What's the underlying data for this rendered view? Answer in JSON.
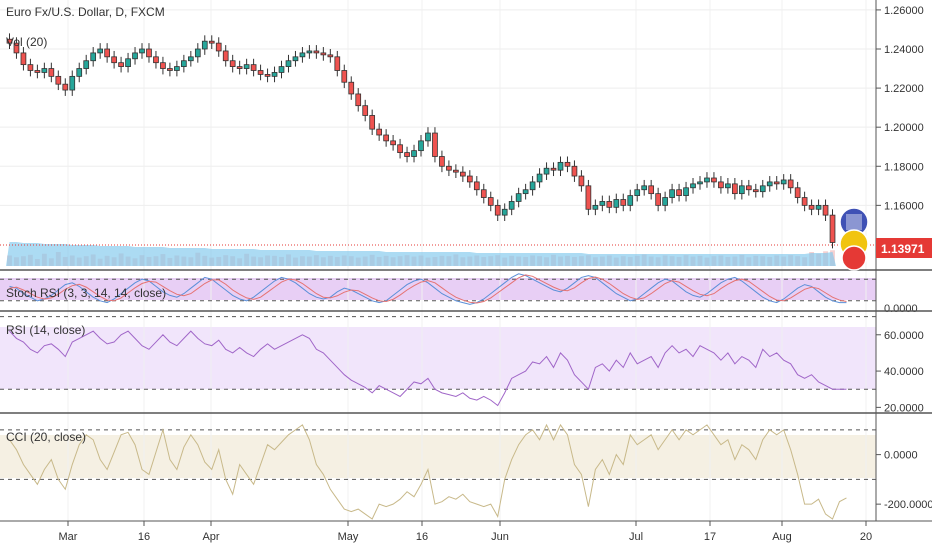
{
  "header": {
    "title": "Euro Fx/U.S. Dollar, D, FXCM",
    "volume_label": "Vol (20)"
  },
  "price_badge": {
    "value": "1.13971",
    "color": "#e53935"
  },
  "x_axis": {
    "ticks": [
      "Mar",
      "16",
      "Apr",
      "May",
      "16",
      "Jun",
      "Jul",
      "17",
      "Aug",
      "20"
    ]
  },
  "chart_data": [
    {
      "type": "line",
      "name": "price",
      "title": "Euro Fx/U.S. Dollar, D, FXCM",
      "ylim": [
        1.13,
        1.262
      ],
      "yticks": [
        1.26,
        1.24,
        1.22,
        1.2,
        1.18,
        1.16
      ],
      "ytick_labels": [
        "1.26000",
        "1.24000",
        "1.22000",
        "1.20000",
        "1.18000",
        "1.16000"
      ],
      "close_values": [
        1.243,
        1.238,
        1.232,
        1.229,
        1.228,
        1.23,
        1.226,
        1.222,
        1.219,
        1.226,
        1.23,
        1.234,
        1.238,
        1.24,
        1.236,
        1.233,
        1.231,
        1.235,
        1.238,
        1.24,
        1.236,
        1.233,
        1.23,
        1.229,
        1.231,
        1.234,
        1.236,
        1.24,
        1.244,
        1.243,
        1.239,
        1.234,
        1.231,
        1.23,
        1.232,
        1.229,
        1.227,
        1.226,
        1.228,
        1.231,
        1.234,
        1.236,
        1.238,
        1.239,
        1.238,
        1.237,
        1.236,
        1.229,
        1.223,
        1.217,
        1.211,
        1.206,
        1.199,
        1.196,
        1.193,
        1.191,
        1.187,
        1.185,
        1.188,
        1.193,
        1.197,
        1.185,
        1.18,
        1.178,
        1.177,
        1.175,
        1.172,
        1.168,
        1.164,
        1.16,
        1.155,
        1.158,
        1.162,
        1.166,
        1.168,
        1.172,
        1.176,
        1.179,
        1.178,
        1.182,
        1.18,
        1.175,
        1.17,
        1.158,
        1.16,
        1.162,
        1.159,
        1.163,
        1.16,
        1.165,
        1.168,
        1.17,
        1.166,
        1.16,
        1.164,
        1.168,
        1.165,
        1.169,
        1.171,
        1.172,
        1.174,
        1.172,
        1.169,
        1.171,
        1.166,
        1.17,
        1.168,
        1.167,
        1.17,
        1.172,
        1.171,
        1.173,
        1.169,
        1.164,
        1.16,
        1.158,
        1.16,
        1.155,
        1.141
      ],
      "last_value": 1.13971
    },
    {
      "type": "bar",
      "name": "volume",
      "title": "Vol (20)",
      "values": [
        30,
        25,
        28,
        32,
        20,
        35,
        22,
        40,
        26,
        30,
        24,
        28,
        33,
        21,
        29,
        25,
        36,
        27,
        22,
        31,
        26,
        28,
        34,
        23,
        30,
        27,
        25,
        38,
        29,
        24,
        26,
        31,
        28,
        22,
        35,
        27,
        25,
        30,
        29,
        26,
        33,
        24,
        28,
        27,
        31,
        25,
        29,
        26,
        30,
        28,
        24,
        27,
        32,
        26,
        29,
        25,
        28,
        31,
        27,
        30,
        24,
        26,
        29,
        28,
        33,
        25,
        27,
        30,
        26,
        28,
        31,
        24,
        29,
        27,
        26,
        30,
        28,
        25,
        32,
        27,
        29,
        26,
        28,
        31,
        25,
        27,
        30,
        24,
        28,
        26,
        29,
        33,
        27,
        25,
        30,
        28,
        26,
        31,
        27,
        29,
        24,
        28,
        30,
        26,
        27,
        32,
        25,
        29,
        28,
        26,
        30,
        27,
        31,
        28,
        25,
        40,
        35,
        42,
        45
      ],
      "ma_values": [
        24,
        24,
        23,
        23,
        23,
        22,
        22,
        22,
        22,
        21,
        21,
        21,
        21,
        20,
        20,
        20,
        20,
        20,
        19,
        19,
        19,
        19,
        19,
        18,
        18,
        18,
        18,
        18,
        18,
        17,
        17,
        17,
        17,
        17,
        17,
        17,
        16,
        16,
        16,
        16,
        16,
        16,
        16,
        16,
        15,
        15,
        15,
        15,
        15,
        15,
        15,
        15,
        15,
        15,
        14,
        14,
        14,
        14,
        14,
        14,
        14,
        14,
        14,
        14,
        14,
        14,
        14,
        13,
        13,
        13,
        13,
        13,
        13,
        13,
        13,
        13,
        13,
        13,
        13,
        13,
        13,
        13,
        13,
        12,
        12,
        12,
        12,
        12,
        12,
        12,
        12,
        12,
        12,
        12,
        12,
        12,
        12,
        12,
        12,
        12,
        12,
        12,
        12,
        12,
        12,
        12,
        12,
        12,
        12,
        12,
        12,
        12,
        12,
        12,
        12,
        13,
        13,
        13,
        14
      ]
    },
    {
      "type": "line",
      "title": "Stoch RSI (3, 3, 14, 14, close)",
      "ylim": [
        0,
        100
      ],
      "yticks": [
        0
      ],
      "ytick_labels": [
        "0.0000"
      ],
      "bands": [
        80,
        20
      ],
      "series": [
        {
          "values": [
            60,
            55,
            40,
            30,
            20,
            25,
            35,
            50,
            65,
            70,
            60,
            45,
            30,
            20,
            15,
            25,
            40,
            55,
            70,
            80,
            75,
            60,
            45,
            35,
            30,
            40,
            55,
            70,
            85,
            80,
            65,
            50,
            35,
            25,
            20,
            30,
            45,
            60,
            75,
            85,
            80,
            70,
            55,
            40,
            30,
            25,
            30,
            45,
            55,
            50,
            40,
            30,
            20,
            15,
            20,
            35,
            50,
            65,
            75,
            80,
            70,
            55,
            40,
            30,
            20,
            15,
            10,
            15,
            25,
            40,
            55,
            70,
            85,
            95,
            90,
            80,
            70,
            60,
            50,
            45,
            55,
            70,
            85,
            90,
            85,
            70,
            55,
            40,
            30,
            20,
            25,
            40,
            55,
            70,
            80,
            75,
            60,
            45,
            35,
            30,
            40,
            55,
            70,
            80,
            85,
            75,
            60,
            45,
            30,
            20,
            15,
            25,
            40,
            55,
            65,
            60,
            45,
            30,
            20,
            15,
            15
          ]
        },
        {
          "values": [
            55,
            58,
            50,
            40,
            30,
            25,
            28,
            38,
            52,
            62,
            66,
            58,
            45,
            32,
            22,
            20,
            28,
            42,
            56,
            68,
            74,
            72,
            60,
            48,
            38,
            34,
            40,
            54,
            68,
            78,
            78,
            66,
            50,
            38,
            28,
            24,
            30,
            44,
            58,
            72,
            80,
            78,
            68,
            54,
            40,
            30,
            28,
            34,
            44,
            50,
            48,
            38,
            28,
            20,
            18,
            24,
            36,
            50,
            62,
            72,
            76,
            70,
            56,
            42,
            30,
            22,
            16,
            14,
            18,
            28,
            42,
            56,
            70,
            84,
            92,
            88,
            78,
            68,
            58,
            50,
            48,
            56,
            70,
            82,
            86,
            80,
            68,
            54,
            40,
            30,
            24,
            28,
            40,
            54,
            68,
            76,
            72,
            60,
            48,
            38,
            34,
            40,
            54,
            66,
            76,
            80,
            74,
            60,
            46,
            32,
            22,
            20,
            28,
            40,
            52,
            58,
            54,
            42,
            30,
            22,
            18
          ]
        }
      ]
    },
    {
      "type": "line",
      "title": "RSI (14, close)",
      "ylim": [
        18,
        72
      ],
      "yticks": [
        60,
        40,
        20
      ],
      "ytick_labels": [
        "60.0000",
        "40.0000",
        "20.0000"
      ],
      "bands": [
        70,
        30
      ],
      "values": [
        62,
        58,
        56,
        52,
        50,
        54,
        55,
        52,
        48,
        56,
        58,
        60,
        62,
        58,
        55,
        56,
        60,
        62,
        58,
        54,
        52,
        56,
        60,
        56,
        54,
        58,
        62,
        58,
        55,
        54,
        57,
        52,
        50,
        53,
        50,
        48,
        52,
        55,
        52,
        54,
        56,
        58,
        60,
        58,
        52,
        50,
        46,
        42,
        38,
        35,
        33,
        31,
        28,
        32,
        30,
        28,
        26,
        30,
        34,
        33,
        36,
        30,
        28,
        27,
        26,
        28,
        25,
        24,
        26,
        24,
        21,
        28,
        36,
        38,
        40,
        45,
        44,
        48,
        42,
        50,
        46,
        38,
        34,
        30,
        42,
        44,
        40,
        46,
        42,
        50,
        44,
        46,
        48,
        42,
        50,
        54,
        50,
        52,
        48,
        54,
        52,
        50,
        46,
        50,
        44,
        48,
        46,
        42,
        52,
        48,
        50,
        46,
        44,
        38,
        36,
        38,
        34,
        32,
        30,
        30,
        30
      ]
    },
    {
      "type": "line",
      "title": "CCI (20, close)",
      "ylim": [
        -260,
        160
      ],
      "yticks": [
        0,
        -200
      ],
      "ytick_labels": [
        "0.0000",
        "-200.0000"
      ],
      "bands": [
        100,
        -100
      ],
      "values": [
        60,
        20,
        -40,
        -80,
        -120,
        -60,
        -20,
        -100,
        -140,
        -40,
        40,
        80,
        60,
        -20,
        -60,
        10,
        80,
        90,
        40,
        -60,
        -80,
        10,
        100,
        -20,
        -60,
        30,
        80,
        40,
        -30,
        -60,
        20,
        -100,
        -160,
        -40,
        -80,
        -120,
        -40,
        40,
        20,
        50,
        80,
        100,
        120,
        60,
        -40,
        -80,
        -140,
        -180,
        -220,
        -230,
        -220,
        -240,
        -260,
        -200,
        -210,
        -200,
        -180,
        -150,
        -170,
        -120,
        -60,
        -200,
        -190,
        -170,
        -180,
        -160,
        -190,
        -200,
        -210,
        -200,
        -250,
        -100,
        -20,
        40,
        80,
        100,
        60,
        120,
        60,
        120,
        80,
        -40,
        -80,
        -210,
        -60,
        -20,
        -80,
        0,
        -40,
        80,
        40,
        60,
        80,
        20,
        60,
        100,
        60,
        100,
        80,
        100,
        120,
        80,
        40,
        60,
        -20,
        40,
        20,
        -20,
        60,
        100,
        80,
        100,
        20,
        -80,
        -200,
        -200,
        -180,
        -240,
        -260,
        -190,
        -175
      ]
    }
  ]
}
